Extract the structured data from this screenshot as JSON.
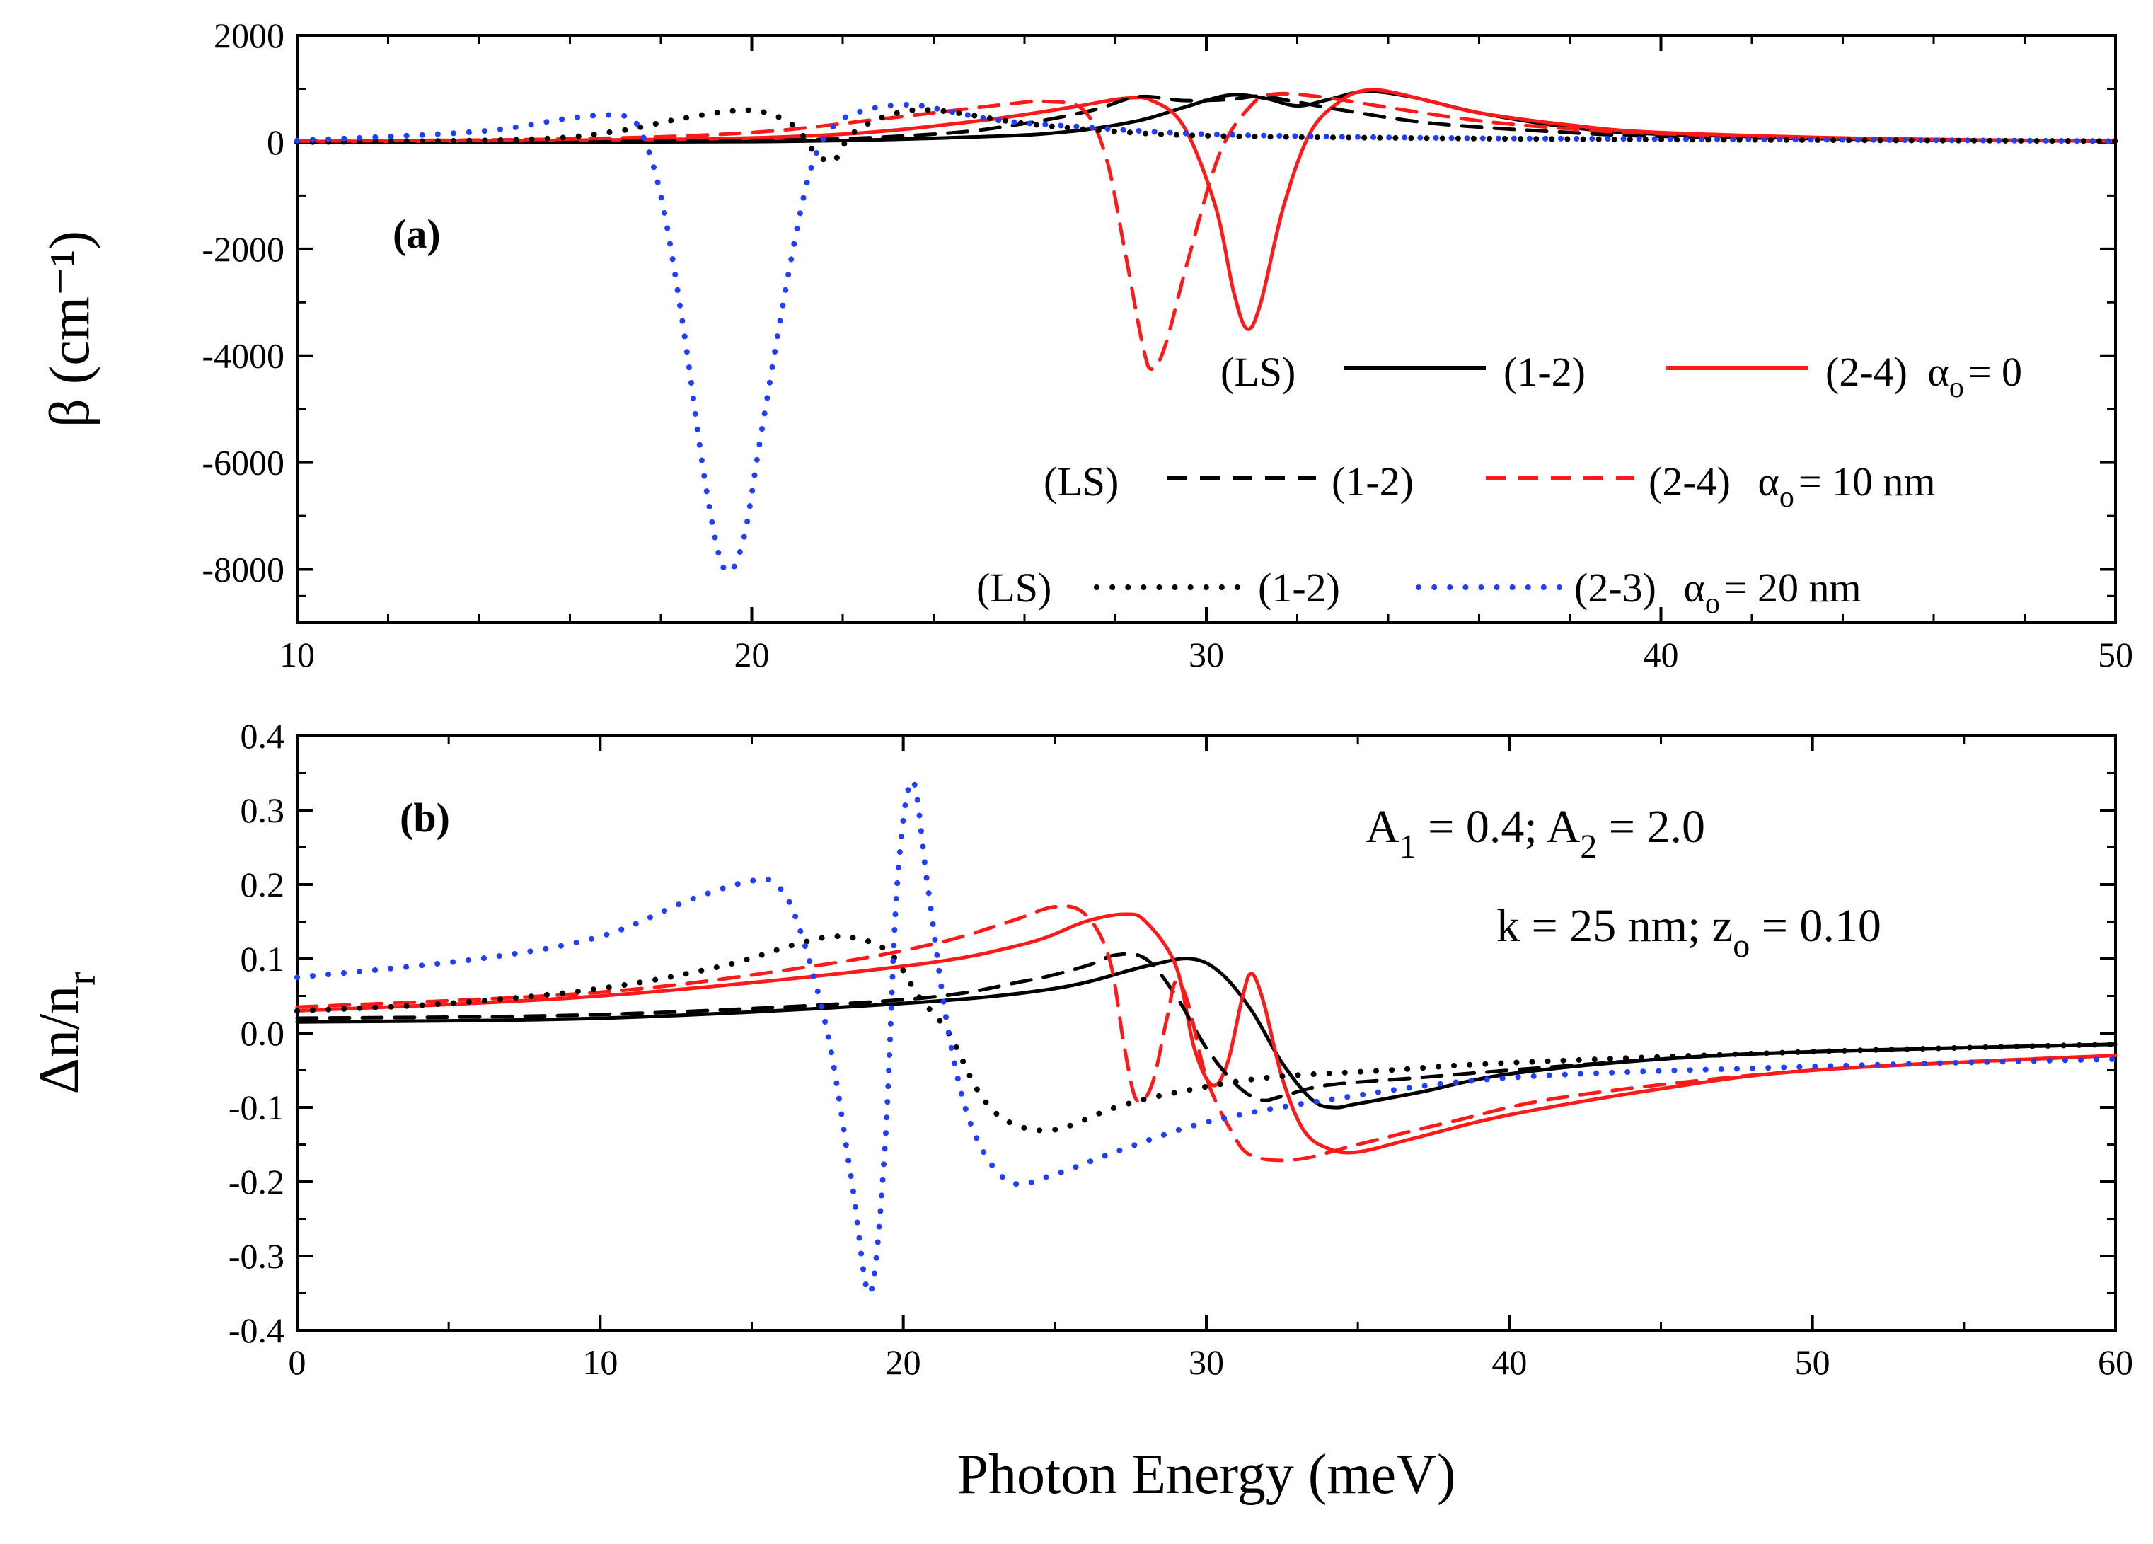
{
  "colors": {
    "black": "#000000",
    "red": "#ff1a1a",
    "blue": "#1f3fff"
  },
  "xlabel": "Photon Energy (meV)",
  "chart_data": [
    {
      "panel_label": "(a)",
      "type": "line",
      "ylabel": "β (cm⁻¹)",
      "xlim": [
        10,
        50
      ],
      "ylim": [
        -9000,
        2000
      ],
      "xticks": [
        "10",
        "20",
        "30",
        "40",
        "50"
      ],
      "yticks": [
        "2000",
        "0",
        "-2000",
        "-4000",
        "-6000",
        "-8000"
      ],
      "legend_rows": [
        {
          "ls": "(LS)",
          "a": "(1-2)",
          "b": "(2-4)",
          "alpha": "α",
          "alpha_sub": "o",
          "alpha_val": "= 0"
        },
        {
          "ls": "(LS)",
          "a": "(1-2)",
          "b": "(2-4)",
          "alpha": "α",
          "alpha_sub": "o",
          "alpha_val": "= 10 nm"
        },
        {
          "ls": "(LS)",
          "a": "(1-2)",
          "b": "(2-3)",
          "alpha": "α",
          "alpha_sub": "o",
          "alpha_val": "= 20 nm"
        }
      ],
      "series": [
        {
          "color": "black",
          "dash": "solid",
          "points": [
            [
              10,
              0
            ],
            [
              20,
              10
            ],
            [
              25,
              100
            ],
            [
              27,
              200
            ],
            [
              28.5,
              400
            ],
            [
              29.5,
              650
            ],
            [
              30.5,
              880
            ],
            [
              31.3,
              820
            ],
            [
              32,
              680
            ],
            [
              32.7,
              800
            ],
            [
              33.5,
              950
            ],
            [
              34.5,
              850
            ],
            [
              36,
              550
            ],
            [
              38,
              280
            ],
            [
              40,
              150
            ],
            [
              45,
              60
            ],
            [
              50,
              20
            ]
          ]
        },
        {
          "color": "red",
          "dash": "solid",
          "points": [
            [
              10,
              10
            ],
            [
              18,
              50
            ],
            [
              22,
              150
            ],
            [
              25,
              400
            ],
            [
              27,
              650
            ],
            [
              28.2,
              820
            ],
            [
              28.8,
              780
            ],
            [
              29.5,
              300
            ],
            [
              30.2,
              -1200
            ],
            [
              30.6,
              -2800
            ],
            [
              30.9,
              -3500
            ],
            [
              31.2,
              -3000
            ],
            [
              31.7,
              -1200
            ],
            [
              32.3,
              200
            ],
            [
              33,
              800
            ],
            [
              33.5,
              970
            ],
            [
              34,
              950
            ],
            [
              35,
              750
            ],
            [
              36,
              550
            ],
            [
              38,
              320
            ],
            [
              40,
              180
            ],
            [
              45,
              60
            ],
            [
              50,
              20
            ]
          ]
        },
        {
          "color": "black",
          "dash": "dashed",
          "points": [
            [
              10,
              0
            ],
            [
              20,
              30
            ],
            [
              24,
              150
            ],
            [
              26,
              350
            ],
            [
              27.5,
              600
            ],
            [
              28.5,
              850
            ],
            [
              29.5,
              780
            ],
            [
              30.5,
              800
            ],
            [
              31.2,
              860
            ],
            [
              32,
              750
            ],
            [
              33,
              600
            ],
            [
              35,
              350
            ],
            [
              38,
              180
            ],
            [
              40,
              110
            ],
            [
              45,
              50
            ],
            [
              50,
              20
            ]
          ]
        },
        {
          "color": "red",
          "dash": "dashed",
          "points": [
            [
              10,
              20
            ],
            [
              16,
              60
            ],
            [
              20,
              180
            ],
            [
              23,
              450
            ],
            [
              25.5,
              700
            ],
            [
              26.5,
              760
            ],
            [
              27.3,
              600
            ],
            [
              27.8,
              -300
            ],
            [
              28.2,
              -2000
            ],
            [
              28.6,
              -3800
            ],
            [
              28.8,
              -4250
            ],
            [
              29.1,
              -3800
            ],
            [
              29.6,
              -2200
            ],
            [
              30.3,
              -200
            ],
            [
              31,
              700
            ],
            [
              31.5,
              900
            ],
            [
              32.5,
              850
            ],
            [
              34,
              650
            ],
            [
              36,
              400
            ],
            [
              38,
              250
            ],
            [
              40,
              160
            ],
            [
              45,
              60
            ],
            [
              50,
              20
            ]
          ]
        },
        {
          "color": "black",
          "dash": "dotted",
          "points": [
            [
              10,
              0
            ],
            [
              15,
              50
            ],
            [
              17,
              200
            ],
            [
              18.5,
              450
            ],
            [
              19.8,
              600
            ],
            [
              20.5,
              500
            ],
            [
              21,
              250
            ],
            [
              21.4,
              -200
            ],
            [
              21.8,
              -350
            ],
            [
              22.2,
              150
            ],
            [
              23,
              500
            ],
            [
              24,
              600
            ],
            [
              26,
              350
            ],
            [
              28,
              200
            ],
            [
              30,
              120
            ],
            [
              34,
              80
            ],
            [
              40,
              50
            ],
            [
              50,
              20
            ]
          ]
        },
        {
          "color": "blue",
          "dash": "dotted",
          "points": [
            [
              10,
              30
            ],
            [
              14,
              200
            ],
            [
              16,
              450
            ],
            [
              17,
              500
            ],
            [
              17.5,
              300
            ],
            [
              18,
              -1000
            ],
            [
              18.5,
              -3500
            ],
            [
              19,
              -6500
            ],
            [
              19.4,
              -8000
            ],
            [
              19.8,
              -7500
            ],
            [
              20.2,
              -5500
            ],
            [
              20.8,
              -2500
            ],
            [
              21.3,
              -500
            ],
            [
              21.8,
              300
            ],
            [
              22.5,
              600
            ],
            [
              23.5,
              700
            ],
            [
              24.5,
              550
            ],
            [
              25.5,
              400
            ],
            [
              27,
              300
            ],
            [
              30,
              150
            ],
            [
              35,
              80
            ],
            [
              40,
              60
            ],
            [
              50,
              20
            ]
          ]
        }
      ]
    },
    {
      "panel_label": "(b)",
      "type": "line",
      "ylabel": "Δn/n",
      "ylabel_sub": "r",
      "xlim": [
        0,
        60
      ],
      "ylim": [
        -0.4,
        0.4
      ],
      "xticks": [
        "0",
        "10",
        "20",
        "30",
        "40",
        "50",
        "60"
      ],
      "yticks": [
        "0.4",
        "0.3",
        "0.2",
        "0.1",
        "0.0",
        "-0.1",
        "-0.2",
        "-0.3",
        "-0.4"
      ],
      "annotation_1": {
        "p1": "A",
        "s1": "1",
        "p2": " = 0.4; A",
        "s2": "2",
        "p3": " = 2.0"
      },
      "annotation_2": {
        "p1": "k = 25 nm; z",
        "s1": "o",
        "p2": " = 0.10"
      },
      "series": [
        {
          "color": "black",
          "dash": "solid",
          "points": [
            [
              0,
              0.015
            ],
            [
              10,
              0.02
            ],
            [
              20,
              0.04
            ],
            [
              25,
              0.06
            ],
            [
              28,
              0.09
            ],
            [
              29.5,
              0.1
            ],
            [
              30.5,
              0.08
            ],
            [
              31.5,
              0.03
            ],
            [
              32.5,
              -0.04
            ],
            [
              33.5,
              -0.09
            ],
            [
              34.2,
              -0.1
            ],
            [
              35,
              -0.095
            ],
            [
              37,
              -0.08
            ],
            [
              40,
              -0.055
            ],
            [
              45,
              -0.035
            ],
            [
              50,
              -0.025
            ],
            [
              60,
              -0.015
            ]
          ]
        },
        {
          "color": "red",
          "dash": "solid",
          "points": [
            [
              0,
              0.03
            ],
            [
              10,
              0.05
            ],
            [
              20,
              0.09
            ],
            [
              24,
              0.12
            ],
            [
              26,
              0.15
            ],
            [
              27.3,
              0.16
            ],
            [
              28,
              0.15
            ],
            [
              29,
              0.09
            ],
            [
              29.6,
              -0.02
            ],
            [
              30.2,
              -0.07
            ],
            [
              30.7,
              -0.04
            ],
            [
              31.2,
              0.05
            ],
            [
              31.5,
              0.08
            ],
            [
              31.9,
              0.04
            ],
            [
              32.5,
              -0.06
            ],
            [
              33.2,
              -0.13
            ],
            [
              34,
              -0.155
            ],
            [
              35,
              -0.16
            ],
            [
              37,
              -0.14
            ],
            [
              40,
              -0.11
            ],
            [
              45,
              -0.075
            ],
            [
              50,
              -0.05
            ],
            [
              60,
              -0.03
            ]
          ]
        },
        {
          "color": "black",
          "dash": "dashed",
          "points": [
            [
              0,
              0.02
            ],
            [
              10,
              0.025
            ],
            [
              20,
              0.045
            ],
            [
              24,
              0.07
            ],
            [
              26,
              0.09
            ],
            [
              27,
              0.105
            ],
            [
              28,
              0.1
            ],
            [
              29,
              0.05
            ],
            [
              30,
              -0.02
            ],
            [
              31,
              -0.07
            ],
            [
              31.8,
              -0.09
            ],
            [
              32.5,
              -0.085
            ],
            [
              34,
              -0.07
            ],
            [
              37,
              -0.06
            ],
            [
              40,
              -0.05
            ],
            [
              45,
              -0.035
            ],
            [
              50,
              -0.025
            ],
            [
              60,
              -0.015
            ]
          ]
        },
        {
          "color": "red",
          "dash": "dashed",
          "points": [
            [
              0,
              0.035
            ],
            [
              10,
              0.055
            ],
            [
              17,
              0.09
            ],
            [
              21,
              0.12
            ],
            [
              23.5,
              0.15
            ],
            [
              25,
              0.17
            ],
            [
              26,
              0.16
            ],
            [
              26.8,
              0.1
            ],
            [
              27.3,
              -0.02
            ],
            [
              27.7,
              -0.09
            ],
            [
              28.2,
              -0.07
            ],
            [
              28.7,
              0.02
            ],
            [
              29,
              0.07
            ],
            [
              29.4,
              0.04
            ],
            [
              30,
              -0.06
            ],
            [
              30.8,
              -0.13
            ],
            [
              31.5,
              -0.165
            ],
            [
              33,
              -0.17
            ],
            [
              35,
              -0.15
            ],
            [
              38,
              -0.12
            ],
            [
              42,
              -0.085
            ],
            [
              50,
              -0.05
            ],
            [
              60,
              -0.03
            ]
          ]
        },
        {
          "color": "black",
          "dash": "dotted",
          "points": [
            [
              0,
              0.03
            ],
            [
              5,
              0.04
            ],
            [
              10,
              0.06
            ],
            [
              14,
              0.09
            ],
            [
              16.5,
              0.12
            ],
            [
              18,
              0.13
            ],
            [
              19.5,
              0.11
            ],
            [
              20.5,
              0.05
            ],
            [
              21.5,
              0.0
            ],
            [
              22.5,
              -0.08
            ],
            [
              23.5,
              -0.12
            ],
            [
              25,
              -0.13
            ],
            [
              27,
              -0.1
            ],
            [
              29,
              -0.08
            ],
            [
              32,
              -0.06
            ],
            [
              36,
              -0.05
            ],
            [
              40,
              -0.04
            ],
            [
              50,
              -0.025
            ],
            [
              60,
              -0.015
            ]
          ]
        },
        {
          "color": "blue",
          "dash": "dotted",
          "points": [
            [
              0,
              0.075
            ],
            [
              6,
              0.1
            ],
            [
              10,
              0.13
            ],
            [
              13,
              0.18
            ],
            [
              15,
              0.205
            ],
            [
              15.8,
              0.2
            ],
            [
              16.5,
              0.15
            ],
            [
              17.5,
              0.0
            ],
            [
              18.3,
              -0.2
            ],
            [
              18.9,
              -0.35
            ],
            [
              19.4,
              -0.15
            ],
            [
              19.8,
              0.2
            ],
            [
              20.3,
              0.34
            ],
            [
              20.8,
              0.2
            ],
            [
              21.5,
              0.0
            ],
            [
              22.3,
              -0.13
            ],
            [
              23.5,
              -0.2
            ],
            [
              25,
              -0.19
            ],
            [
              27,
              -0.16
            ],
            [
              30,
              -0.12
            ],
            [
              34,
              -0.09
            ],
            [
              40,
              -0.06
            ],
            [
              50,
              -0.045
            ],
            [
              60,
              -0.035
            ]
          ]
        }
      ]
    }
  ]
}
